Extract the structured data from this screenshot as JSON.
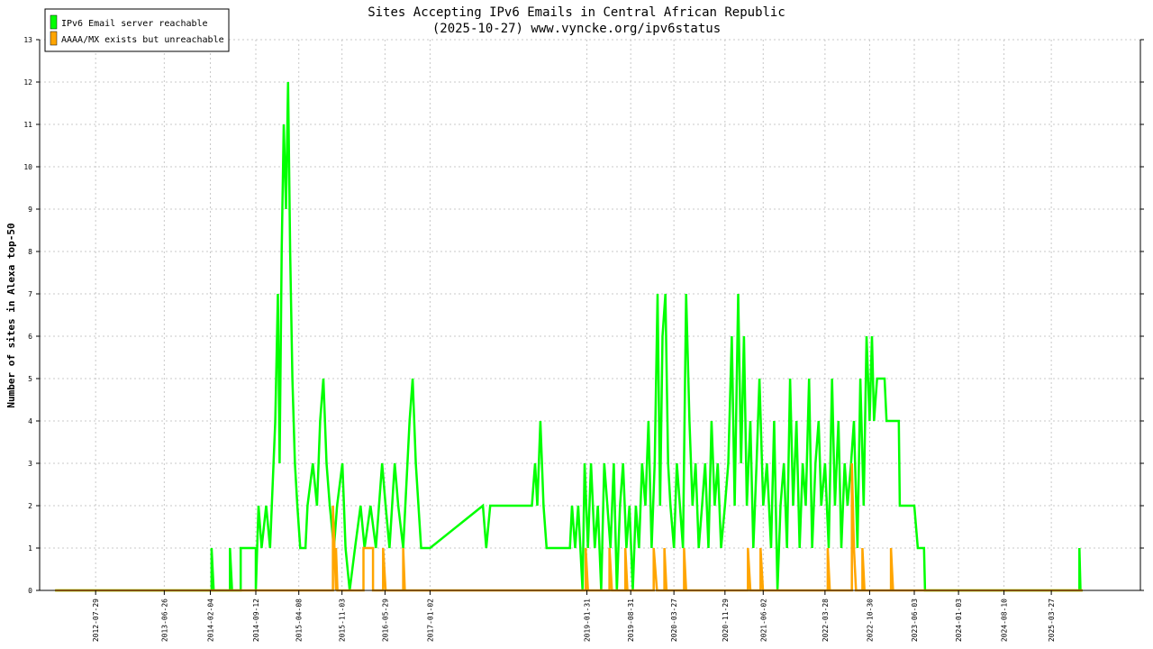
{
  "chart_data": {
    "type": "line",
    "title": "Sites Accepting IPv6 Emails in Central African Republic",
    "subtitle": "(2025-10-27) www.vyncke.org/ipv6status",
    "ylabel": "Number of sites in Alexa top-50",
    "xlabel": "",
    "ylim": [
      0,
      13
    ],
    "yticks": [
      0,
      1,
      2,
      3,
      4,
      5,
      6,
      7,
      8,
      9,
      10,
      11,
      12,
      13
    ],
    "xlim": [
      "2011-11-01",
      "2026-06-01"
    ],
    "xticks": [
      "2012-07-29",
      "2013-06-26",
      "2014-02-04",
      "2014-09-12",
      "2015-04-08",
      "2015-11-03",
      "2016-05-29",
      "2017-01-02",
      "2019-01-31",
      "2019-08-31",
      "2020-03-27",
      "2020-11-29",
      "2021-06-02",
      "2022-03-28",
      "2022-10-30",
      "2023-06-03",
      "2024-01-03",
      "2024-08-10",
      "2025-03-27"
    ],
    "grid": true,
    "legend_position": "top-left",
    "series": [
      {
        "name": "IPv6 Email server reachable",
        "color": "#00ff00",
        "points": [
          [
            "2012-01-15",
            0
          ],
          [
            "2014-02-10",
            0
          ],
          [
            "2014-02-10",
            1
          ],
          [
            "2014-02-20",
            0
          ],
          [
            "2014-05-10",
            0
          ],
          [
            "2014-05-10",
            1
          ],
          [
            "2014-05-20",
            0
          ],
          [
            "2014-07-01",
            0
          ],
          [
            "2014-07-01",
            1
          ],
          [
            "2014-09-12",
            1
          ],
          [
            "2014-09-12",
            0
          ],
          [
            "2014-09-25",
            2
          ],
          [
            "2014-10-10",
            1
          ],
          [
            "2014-11-01",
            2
          ],
          [
            "2014-11-20",
            1
          ],
          [
            "2014-12-15",
            4
          ],
          [
            "2014-12-28",
            7
          ],
          [
            "2015-01-05",
            3
          ],
          [
            "2015-01-15",
            8
          ],
          [
            "2015-01-25",
            11
          ],
          [
            "2015-02-05",
            9
          ],
          [
            "2015-02-15",
            12
          ],
          [
            "2015-02-25",
            8
          ],
          [
            "2015-03-08",
            5
          ],
          [
            "2015-03-20",
            3
          ],
          [
            "2015-04-01",
            2
          ],
          [
            "2015-04-15",
            1
          ],
          [
            "2015-05-10",
            1
          ],
          [
            "2015-05-20",
            2
          ],
          [
            "2015-06-15",
            3
          ],
          [
            "2015-07-05",
            2
          ],
          [
            "2015-07-20",
            4
          ],
          [
            "2015-08-05",
            5
          ],
          [
            "2015-08-20",
            3
          ],
          [
            "2015-09-05",
            2
          ],
          [
            "2015-09-25",
            1
          ],
          [
            "2015-10-10",
            2
          ],
          [
            "2015-11-05",
            3
          ],
          [
            "2015-11-20",
            1
          ],
          [
            "2015-12-10",
            0
          ],
          [
            "2016-01-05",
            1
          ],
          [
            "2016-02-01",
            2
          ],
          [
            "2016-02-20",
            1
          ],
          [
            "2016-03-20",
            2
          ],
          [
            "2016-04-15",
            1
          ],
          [
            "2016-05-15",
            3
          ],
          [
            "2016-06-01",
            2
          ],
          [
            "2016-06-20",
            1
          ],
          [
            "2016-07-15",
            3
          ],
          [
            "2016-08-01",
            2
          ],
          [
            "2016-08-25",
            1
          ],
          [
            "2016-09-25",
            4
          ],
          [
            "2016-10-10",
            5
          ],
          [
            "2016-10-25",
            3
          ],
          [
            "2016-11-20",
            1
          ],
          [
            "2017-01-02",
            1
          ],
          [
            "2017-09-15",
            2
          ],
          [
            "2017-10-01",
            1
          ],
          [
            "2017-10-20",
            2
          ],
          [
            "2018-05-10",
            2
          ],
          [
            "2018-05-25",
            3
          ],
          [
            "2018-06-05",
            2
          ],
          [
            "2018-06-20",
            4
          ],
          [
            "2018-07-05",
            2
          ],
          [
            "2018-07-20",
            1
          ],
          [
            "2018-11-10",
            1
          ],
          [
            "2018-11-20",
            2
          ],
          [
            "2018-12-05",
            1
          ],
          [
            "2018-12-20",
            2
          ],
          [
            "2019-01-10",
            0
          ],
          [
            "2019-01-20",
            3
          ],
          [
            "2019-02-05",
            1
          ],
          [
            "2019-02-20",
            3
          ],
          [
            "2019-03-10",
            1
          ],
          [
            "2019-03-25",
            2
          ],
          [
            "2019-04-10",
            0
          ],
          [
            "2019-04-25",
            3
          ],
          [
            "2019-05-10",
            2
          ],
          [
            "2019-05-25",
            1
          ],
          [
            "2019-06-10",
            3
          ],
          [
            "2019-06-25",
            0
          ],
          [
            "2019-07-10",
            2
          ],
          [
            "2019-07-25",
            3
          ],
          [
            "2019-08-10",
            1
          ],
          [
            "2019-08-25",
            2
          ],
          [
            "2019-09-10",
            0
          ],
          [
            "2019-09-25",
            2
          ],
          [
            "2019-10-10",
            1
          ],
          [
            "2019-10-25",
            3
          ],
          [
            "2019-11-10",
            2
          ],
          [
            "2019-11-25",
            4
          ],
          [
            "2019-12-10",
            1
          ],
          [
            "2019-12-25",
            3
          ],
          [
            "2020-01-08",
            7
          ],
          [
            "2020-01-20",
            2
          ],
          [
            "2020-02-01",
            6
          ],
          [
            "2020-02-15",
            7
          ],
          [
            "2020-02-28",
            3
          ],
          [
            "2020-03-10",
            2
          ],
          [
            "2020-03-27",
            1
          ],
          [
            "2020-04-10",
            3
          ],
          [
            "2020-04-25",
            2
          ],
          [
            "2020-05-10",
            1
          ],
          [
            "2020-05-25",
            7
          ],
          [
            "2020-06-10",
            4
          ],
          [
            "2020-06-25",
            2
          ],
          [
            "2020-07-10",
            3
          ],
          [
            "2020-07-25",
            1
          ],
          [
            "2020-08-10",
            2
          ],
          [
            "2020-08-25",
            3
          ],
          [
            "2020-09-10",
            1
          ],
          [
            "2020-09-25",
            4
          ],
          [
            "2020-10-10",
            2
          ],
          [
            "2020-10-25",
            3
          ],
          [
            "2020-11-10",
            1
          ],
          [
            "2020-11-29",
            2
          ],
          [
            "2020-12-15",
            3
          ],
          [
            "2021-01-01",
            6
          ],
          [
            "2021-01-15",
            2
          ],
          [
            "2021-02-01",
            7
          ],
          [
            "2021-02-15",
            3
          ],
          [
            "2021-03-01",
            6
          ],
          [
            "2021-03-15",
            2
          ],
          [
            "2021-04-01",
            4
          ],
          [
            "2021-04-15",
            1
          ],
          [
            "2021-05-01",
            3
          ],
          [
            "2021-05-15",
            5
          ],
          [
            "2021-06-02",
            2
          ],
          [
            "2021-06-20",
            3
          ],
          [
            "2021-07-10",
            1
          ],
          [
            "2021-07-25",
            4
          ],
          [
            "2021-08-10",
            0
          ],
          [
            "2021-08-25",
            2
          ],
          [
            "2021-09-10",
            3
          ],
          [
            "2021-09-25",
            1
          ],
          [
            "2021-10-10",
            5
          ],
          [
            "2021-10-25",
            2
          ],
          [
            "2021-11-10",
            4
          ],
          [
            "2021-11-25",
            1
          ],
          [
            "2021-12-10",
            3
          ],
          [
            "2021-12-25",
            2
          ],
          [
            "2022-01-10",
            5
          ],
          [
            "2022-01-25",
            1
          ],
          [
            "2022-02-10",
            3
          ],
          [
            "2022-02-25",
            4
          ],
          [
            "2022-03-10",
            2
          ],
          [
            "2022-03-28",
            3
          ],
          [
            "2022-04-15",
            1
          ],
          [
            "2022-05-01",
            5
          ],
          [
            "2022-05-15",
            2
          ],
          [
            "2022-06-01",
            4
          ],
          [
            "2022-06-15",
            1
          ],
          [
            "2022-07-01",
            3
          ],
          [
            "2022-07-15",
            2
          ],
          [
            "2022-08-01",
            3
          ],
          [
            "2022-08-15",
            4
          ],
          [
            "2022-09-01",
            1
          ],
          [
            "2022-09-15",
            5
          ],
          [
            "2022-10-01",
            2
          ],
          [
            "2022-10-15",
            6
          ],
          [
            "2022-10-30",
            4
          ],
          [
            "2022-11-10",
            6
          ],
          [
            "2022-11-20",
            4
          ],
          [
            "2022-12-05",
            5
          ],
          [
            "2023-01-10",
            5
          ],
          [
            "2023-01-20",
            4
          ],
          [
            "2023-03-20",
            4
          ],
          [
            "2023-03-25",
            2
          ],
          [
            "2023-06-03",
            2
          ],
          [
            "2023-06-20",
            1
          ],
          [
            "2023-07-20",
            1
          ],
          [
            "2023-07-25",
            0
          ],
          [
            "2025-08-10",
            0
          ],
          [
            "2025-08-10",
            1
          ],
          [
            "2025-08-15",
            0
          ],
          [
            "2025-08-25",
            0
          ]
        ]
      },
      {
        "name": "AAAA/MX exists but unreachable",
        "color": "#ffa500",
        "points": [
          [
            "2012-01-15",
            0
          ],
          [
            "2015-09-20",
            0
          ],
          [
            "2015-09-20",
            2
          ],
          [
            "2015-10-05",
            0
          ],
          [
            "2015-10-05",
            1
          ],
          [
            "2015-10-12",
            0
          ],
          [
            "2016-02-15",
            0
          ],
          [
            "2016-02-15",
            1
          ],
          [
            "2016-04-01",
            1
          ],
          [
            "2016-04-01",
            0
          ],
          [
            "2016-05-20",
            0
          ],
          [
            "2016-05-20",
            1
          ],
          [
            "2016-06-01",
            0
          ],
          [
            "2016-08-25",
            0
          ],
          [
            "2016-08-25",
            1
          ],
          [
            "2016-09-02",
            0
          ],
          [
            "2019-01-25",
            0
          ],
          [
            "2019-01-25",
            1
          ],
          [
            "2019-02-05",
            0
          ],
          [
            "2019-05-20",
            0
          ],
          [
            "2019-05-20",
            1
          ],
          [
            "2019-06-01",
            0
          ],
          [
            "2019-08-05",
            0
          ],
          [
            "2019-08-05",
            1
          ],
          [
            "2019-08-15",
            0
          ],
          [
            "2019-12-20",
            0
          ],
          [
            "2019-12-20",
            1
          ],
          [
            "2020-01-05",
            0
          ],
          [
            "2020-02-10",
            0
          ],
          [
            "2020-02-10",
            1
          ],
          [
            "2020-02-20",
            0
          ],
          [
            "2020-05-15",
            0
          ],
          [
            "2020-05-15",
            1
          ],
          [
            "2020-05-25",
            0
          ],
          [
            "2021-03-20",
            0
          ],
          [
            "2021-03-20",
            1
          ],
          [
            "2021-04-01",
            0
          ],
          [
            "2021-05-20",
            0
          ],
          [
            "2021-05-20",
            1
          ],
          [
            "2021-06-01",
            0
          ],
          [
            "2022-04-10",
            0
          ],
          [
            "2022-04-10",
            1
          ],
          [
            "2022-04-20",
            0
          ],
          [
            "2022-08-05",
            0
          ],
          [
            "2022-08-05",
            3
          ],
          [
            "2022-08-15",
            1
          ],
          [
            "2022-08-25",
            0
          ],
          [
            "2022-09-25",
            0
          ],
          [
            "2022-09-25",
            1
          ],
          [
            "2022-10-05",
            0
          ],
          [
            "2023-02-10",
            0
          ],
          [
            "2023-02-10",
            1
          ],
          [
            "2023-02-20",
            0
          ],
          [
            "2025-08-25",
            0
          ]
        ]
      }
    ]
  }
}
